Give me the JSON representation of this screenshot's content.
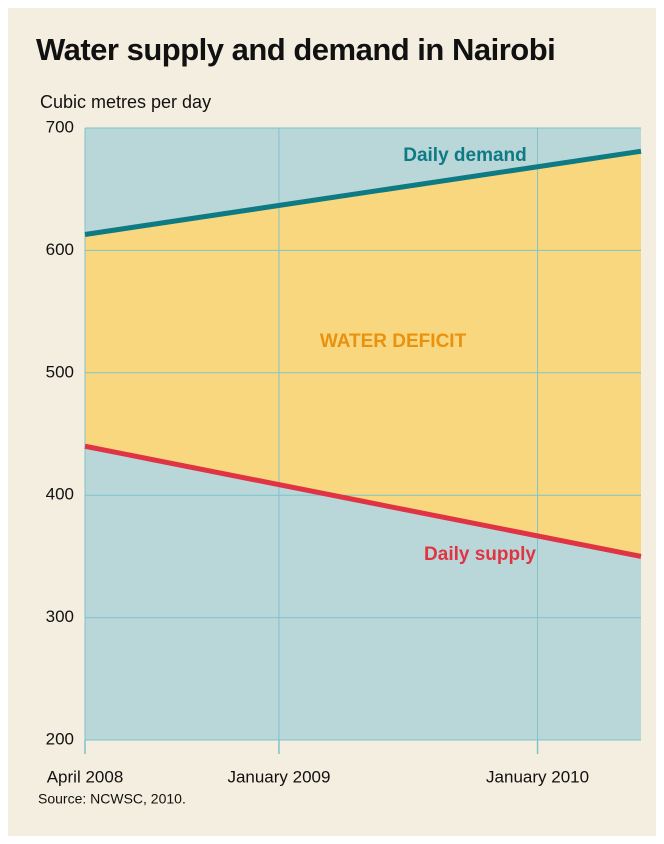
{
  "chart_data": {
    "type": "line",
    "title": "Water supply and demand in Nairobi",
    "y_label": "Cubic metres per day",
    "source": "Source: NCWSC, 2010.",
    "x": [
      2008.25,
      2010.4
    ],
    "series": [
      {
        "name": "Daily demand",
        "color": "#0e7a84",
        "values": [
          613,
          681
        ]
      },
      {
        "name": "Daily supply",
        "color": "#e03445",
        "values": [
          440,
          350
        ]
      }
    ],
    "fill_between": {
      "label": "WATER DEFICIT",
      "color": "#f8d77f",
      "label_color": "#e8920f"
    },
    "plot_background": "#b9d7d9",
    "xlim": [
      2008.25,
      2010.4
    ],
    "xticks": [
      {
        "value": 2008.25,
        "label": "April 2008"
      },
      {
        "value": 2009.0,
        "label": "January 2009"
      },
      {
        "value": 2010.0,
        "label": "January 2010"
      }
    ],
    "ylim": [
      200,
      700
    ],
    "yticks": [
      200,
      300,
      400,
      500,
      600,
      700
    ],
    "grid": true
  }
}
